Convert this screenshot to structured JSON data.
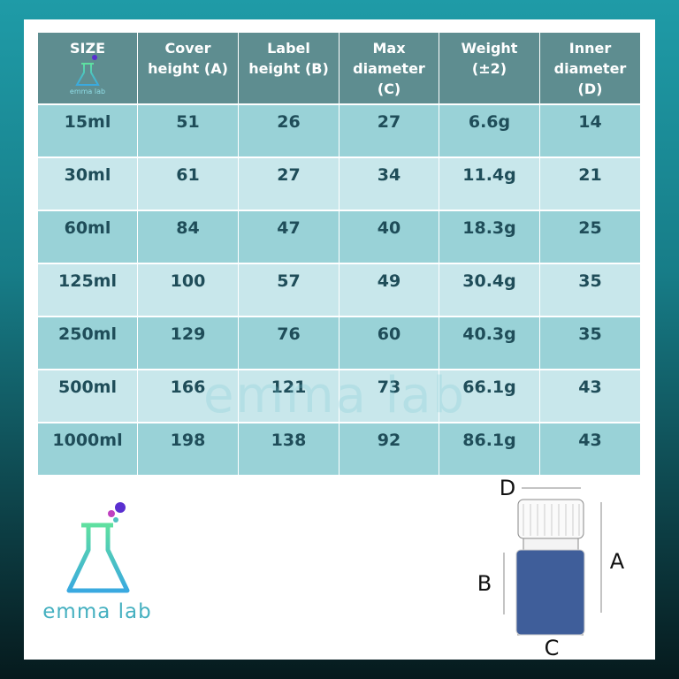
{
  "table": {
    "header": [
      [
        "SIZE"
      ],
      [
        "Cover",
        "height (A)"
      ],
      [
        "Label",
        "height (B)"
      ],
      [
        "Max",
        "diameter",
        "(C)"
      ],
      [
        "Weight",
        "(±2)"
      ],
      [
        "Inner",
        "diameter",
        "(D)"
      ]
    ],
    "rows": [
      [
        "15ml",
        "51",
        "26",
        "27",
        "6.6g",
        "14"
      ],
      [
        "30ml",
        "61",
        "27",
        "34",
        "11.4g",
        "21"
      ],
      [
        "60ml",
        "84",
        "47",
        "40",
        "18.3g",
        "25"
      ],
      [
        "125ml",
        "100",
        "57",
        "49",
        "30.4g",
        "35"
      ],
      [
        "250ml",
        "129",
        "76",
        "60",
        "40.3g",
        "35"
      ],
      [
        "500ml",
        "166",
        "121",
        "73",
        "66.1g",
        "43"
      ],
      [
        "1000ml",
        "198",
        "138",
        "92",
        "86.1g",
        "43"
      ]
    ]
  },
  "brand": "emma lab",
  "diagram": {
    "d": "D",
    "a": "A",
    "b": "B",
    "c": "C"
  }
}
